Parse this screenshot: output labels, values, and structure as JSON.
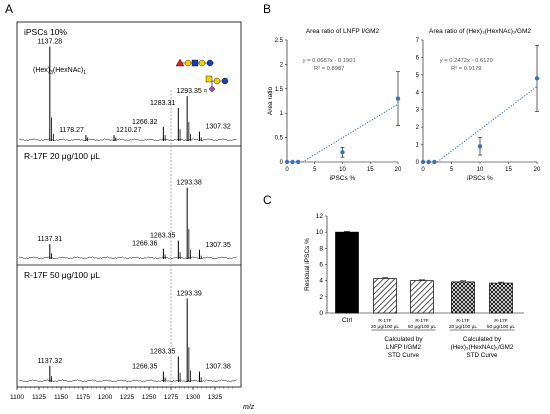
{
  "panels": {
    "a": "A",
    "b": "B",
    "c": "C"
  },
  "ms_annotations": {
    "sugar_title": "(Hex)",
    "sugar_sub1": "3",
    "sugar_mid": "(HexNAc)",
    "sugar_sub2": "1",
    "linkage": "α"
  },
  "chart_data": [
    {
      "id": "panel-a",
      "type": "line",
      "xlabel": "m/z",
      "xlim": [
        1100,
        1350
      ],
      "xticks": [
        1100,
        1125,
        1150,
        1175,
        1200,
        1225,
        1250,
        1275,
        1300,
        1325
      ],
      "dashed_marker_x": 1275,
      "spectra": [
        {
          "title": "iPSCs 10%",
          "peaks": [
            {
              "x": 1137.28,
              "h": 0.8,
              "label": "1137.28"
            },
            {
              "x": 1178.27,
              "h": 0.05,
              "label": "1178.27"
            },
            {
              "x": 1210.27,
              "h": 0.05,
              "label": "1210.27"
            },
            {
              "x": 1266.32,
              "h": 0.12,
              "label": "1266.32"
            },
            {
              "x": 1283.31,
              "h": 0.28,
              "label": "1283.31"
            },
            {
              "x": 1293.35,
              "h": 0.38,
              "label": "1293.35"
            },
            {
              "x": 1307.32,
              "h": 0.08,
              "label": "1307.32"
            }
          ],
          "minor": [
            [
              1139.3,
              0.2
            ],
            [
              1141.3,
              0.06
            ],
            [
              1180.3,
              0.03
            ],
            [
              1212.3,
              0.03
            ],
            [
              1268.3,
              0.05
            ],
            [
              1285.3,
              0.1
            ],
            [
              1295.3,
              0.16
            ],
            [
              1297.3,
              0.06
            ],
            [
              1309.3,
              0.03
            ]
          ]
        },
        {
          "title": "R-17F 20 μg/100 μL",
          "peaks": [
            {
              "x": 1137.31,
              "h": 0.13,
              "label": "1137.31"
            },
            {
              "x": 1266.36,
              "h": 0.09,
              "label": "1266.36"
            },
            {
              "x": 1283.35,
              "h": 0.16,
              "label": "1283.35"
            },
            {
              "x": 1293.38,
              "h": 0.62,
              "label": "1293.38"
            },
            {
              "x": 1307.35,
              "h": 0.08,
              "label": "1307.35"
            }
          ],
          "minor": [
            [
              1139.3,
              0.05
            ],
            [
              1268.3,
              0.04
            ],
            [
              1285.3,
              0.06
            ],
            [
              1295.3,
              0.26
            ],
            [
              1297.3,
              0.08
            ],
            [
              1309.3,
              0.03
            ]
          ]
        },
        {
          "title": "R-17F 50 μg/100 μL",
          "peaks": [
            {
              "x": 1137.32,
              "h": 0.14,
              "label": "1137.32"
            },
            {
              "x": 1266.35,
              "h": 0.09,
              "label": "1266.35"
            },
            {
              "x": 1283.35,
              "h": 0.22,
              "label": "1283.35"
            },
            {
              "x": 1293.39,
              "h": 0.72,
              "label": "1293.39"
            },
            {
              "x": 1307.38,
              "h": 0.09,
              "label": "1307.38"
            }
          ],
          "minor": [
            [
              1139.3,
              0.05
            ],
            [
              1268.3,
              0.04
            ],
            [
              1285.3,
              0.08
            ],
            [
              1295.3,
              0.3
            ],
            [
              1297.3,
              0.1
            ],
            [
              1309.3,
              0.04
            ]
          ]
        }
      ]
    },
    {
      "id": "panel-b1",
      "type": "scatter",
      "title": "Area ratio of LNFP Ⅰ/GM2",
      "xlabel": "iPSCs %",
      "ylabel": "Area ratio",
      "xlim": [
        0,
        20
      ],
      "ylim": [
        0,
        2.5
      ],
      "xticks": [
        0,
        5,
        10,
        15,
        20
      ],
      "yticks": [
        0,
        0.5,
        1,
        1.5,
        2,
        2.5
      ],
      "points": [
        {
          "x": 0,
          "y": 0,
          "err": 0
        },
        {
          "x": 1,
          "y": 0,
          "err": 0
        },
        {
          "x": 2,
          "y": 0,
          "err": 0
        },
        {
          "x": 10,
          "y": 0.2,
          "err": 0.1
        },
        {
          "x": 20,
          "y": 1.3,
          "err": 0.55
        }
      ],
      "equation": "y = 0.0687x - 0.1901",
      "r2": "R² = 0.8987",
      "trend": {
        "slope": 0.0687,
        "intercept": -0.1901
      }
    },
    {
      "id": "panel-b2",
      "type": "scatter",
      "title": "Area ratio of (Hex)₃(HexNAc)₁/GM2",
      "xlabel": "iPSCs %",
      "ylabel": "",
      "xlim": [
        0,
        20
      ],
      "ylim": [
        0,
        7
      ],
      "xticks": [
        0,
        5,
        10,
        15,
        20
      ],
      "yticks": [
        0,
        1,
        2,
        3,
        4,
        5,
        6,
        7
      ],
      "points": [
        {
          "x": 0,
          "y": 0,
          "err": 0
        },
        {
          "x": 1,
          "y": 0,
          "err": 0
        },
        {
          "x": 2,
          "y": 0,
          "err": 0
        },
        {
          "x": 10,
          "y": 0.9,
          "err": 0.5
        },
        {
          "x": 20,
          "y": 4.8,
          "err": 1.9
        }
      ],
      "equation": "y = 0.2472x - 0.6129",
      "r2": "R² = 0.9179",
      "trend": {
        "slope": 0.2472,
        "intercept": -0.6129
      }
    },
    {
      "id": "panel-c",
      "type": "bar",
      "ylabel": "Residual iPSCs %",
      "ylim": [
        0,
        12
      ],
      "yticks": [
        0,
        2,
        4,
        6,
        8,
        10,
        12
      ],
      "bars": [
        {
          "label": "Ctrl",
          "value": 10,
          "err": 0.02,
          "fill": "solid"
        },
        {
          "label": "R-17F\n20 μg/100 μL",
          "value": 4.25,
          "err": 0.04,
          "fill": "hatch"
        },
        {
          "label": "R-17F\n50 μg/100 μL",
          "value": 4.0,
          "err": 0.03,
          "fill": "hatch"
        },
        {
          "label": "R-17F\n20 μg/100 μL",
          "value": 3.85,
          "err": 0.06,
          "fill": "cross"
        },
        {
          "label": "R-17F\n50 μg/100 μL",
          "value": 3.7,
          "err": 0.05,
          "fill": "cross"
        }
      ],
      "groups": [
        {
          "label": "Calculated by\nLNFP Ⅰ/GM2\nSTD Curve",
          "bars": [
            1,
            2
          ]
        },
        {
          "label": "Calculated by\n(Hex)₃(HexNAc)₁/GM2\nSTD Curve",
          "bars": [
            3,
            4
          ]
        }
      ]
    }
  ]
}
